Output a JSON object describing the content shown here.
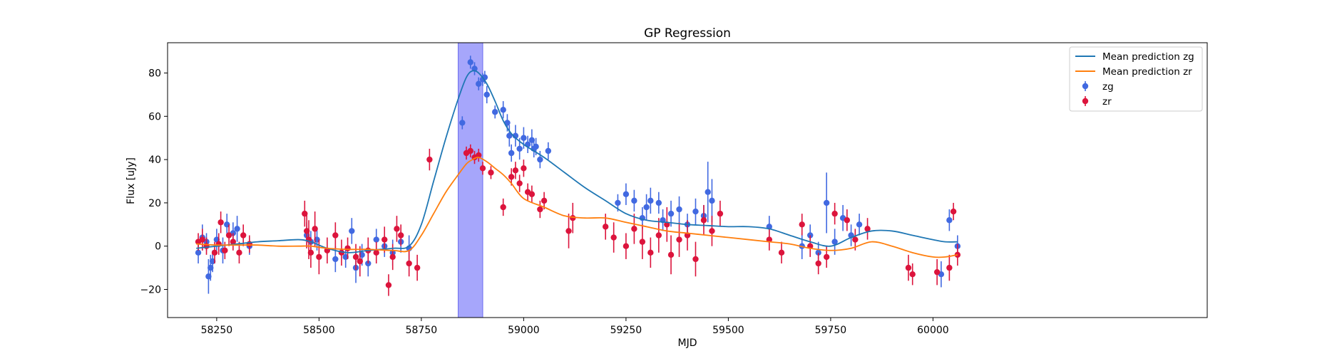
{
  "chart_data": {
    "type": "scatter",
    "title": "GP Regression",
    "xlabel": "MJD",
    "ylabel": "Flux [uJy]",
    "xlim": [
      58130,
      60670
    ],
    "ylim": [
      -33,
      94
    ],
    "xticks": [
      58250,
      58500,
      58750,
      59000,
      59250,
      59500,
      59750,
      60000
    ],
    "yticks": [
      -20,
      0,
      20,
      40,
      60,
      80
    ],
    "grid": false,
    "legend_position": "top-right",
    "shaded_region": {
      "x_start": 58840,
      "x_end": 58900,
      "color": "#a6a6fb"
    },
    "colors": {
      "zg_line": "#1f77b4",
      "zr_line": "#ff7f0e",
      "zg_points": "#4169e1",
      "zr_points": "#dc143c"
    },
    "lines": [
      {
        "name": "Mean prediction zg",
        "x": [
          58200,
          58250,
          58300,
          58350,
          58400,
          58450,
          58480,
          58520,
          58570,
          58620,
          58680,
          58720,
          58750,
          58780,
          58810,
          58840,
          58860,
          58875,
          58890,
          58910,
          58930,
          58950,
          58970,
          59000,
          59050,
          59100,
          59150,
          59200,
          59250,
          59300,
          59350,
          59400,
          59450,
          59500,
          59550,
          59600,
          59650,
          59700,
          59750,
          59800,
          59850,
          59900,
          59950,
          60000,
          60030,
          60060
        ],
        "y": [
          -1,
          0,
          1,
          2,
          2.5,
          3,
          2,
          -1,
          -3,
          -2,
          -1,
          0,
          10,
          30,
          50,
          68,
          78,
          81,
          80,
          75,
          67,
          58,
          52,
          47,
          41,
          34,
          27,
          21,
          15,
          12,
          11,
          10,
          9.5,
          9,
          9,
          8,
          5,
          2,
          0,
          4,
          7,
          7,
          5,
          3,
          2,
          2
        ]
      },
      {
        "name": "Mean prediction zr",
        "x": [
          58200,
          58250,
          58300,
          58350,
          58400,
          58450,
          58480,
          58520,
          58570,
          58620,
          58680,
          58720,
          58750,
          58780,
          58810,
          58840,
          58860,
          58875,
          58890,
          58910,
          58930,
          58950,
          58970,
          59000,
          59050,
          59100,
          59150,
          59200,
          59250,
          59300,
          59350,
          59400,
          59450,
          59500,
          59550,
          59600,
          59650,
          59700,
          59750,
          59800,
          59850,
          59900,
          59950,
          60000,
          60030,
          60060
        ],
        "y": [
          1,
          0.5,
          0.5,
          0.5,
          0,
          0,
          0,
          -1,
          -1.5,
          -1.5,
          -2,
          -2,
          5,
          15,
          25,
          33,
          38,
          40,
          41,
          39,
          36,
          33,
          29,
          22,
          18,
          14,
          13,
          13,
          11,
          9,
          7,
          6,
          5,
          4,
          3,
          2,
          1,
          -1,
          -2,
          -1,
          2,
          0,
          -3,
          -5,
          -5,
          -4
        ]
      }
    ],
    "series": [
      {
        "name": "zg",
        "x": [
          58205,
          58215,
          58225,
          58230,
          58235,
          58240,
          58250,
          58265,
          58275,
          58290,
          58300,
          58330,
          58470,
          58480,
          58495,
          58540,
          58565,
          58580,
          58590,
          58605,
          58620,
          58640,
          58660,
          58680,
          58700,
          58720,
          58850,
          58870,
          58880,
          58890,
          58900,
          58905,
          58910,
          58930,
          58950,
          58960,
          58965,
          58970,
          58980,
          58990,
          59000,
          59010,
          59020,
          59025,
          59030,
          59040,
          59060,
          59230,
          59250,
          59270,
          59290,
          59300,
          59310,
          59330,
          59340,
          59360,
          59380,
          59400,
          59420,
          59440,
          59450,
          59460,
          59600,
          59680,
          59700,
          59720,
          59740,
          59760,
          59780,
          59800,
          59820,
          60020,
          60040,
          60060
        ],
        "y": [
          -3,
          4,
          2,
          -14,
          -10,
          -7,
          3,
          -2,
          10,
          6,
          8,
          0,
          5,
          2,
          3,
          -6,
          -5,
          7,
          -10,
          -4,
          -8,
          3,
          0,
          -3,
          2,
          -1,
          57,
          85,
          82,
          75,
          77,
          78,
          70,
          62,
          63,
          57,
          51,
          43,
          51,
          45,
          50,
          47,
          49,
          45,
          46,
          40,
          44,
          20,
          24,
          21,
          13,
          18,
          21,
          20,
          12,
          15,
          17,
          10,
          16,
          14,
          25,
          21,
          9,
          0,
          5,
          -3,
          20,
          2,
          13,
          5,
          10,
          -13,
          12,
          0
        ],
        "error": [
          5,
          6,
          4,
          8,
          6,
          5,
          5,
          6,
          5,
          5,
          6,
          4,
          6,
          5,
          5,
          6,
          5,
          6,
          7,
          5,
          6,
          5,
          5,
          6,
          5,
          6,
          3,
          3,
          3,
          3,
          3,
          3,
          4,
          3,
          4,
          4,
          5,
          4,
          5,
          5,
          5,
          4,
          5,
          4,
          4,
          4,
          4,
          4,
          5,
          5,
          5,
          6,
          6,
          5,
          5,
          6,
          6,
          5,
          6,
          5,
          14,
          10,
          5,
          6,
          5,
          5,
          14,
          6,
          6,
          5,
          5,
          6,
          5,
          5
        ]
      },
      {
        "name": "zr",
        "x": [
          58205,
          58215,
          58225,
          58245,
          58255,
          58260,
          58270,
          58280,
          58290,
          58305,
          58315,
          58330,
          58465,
          58470,
          58475,
          58480,
          58490,
          58500,
          58520,
          58540,
          58555,
          58570,
          58590,
          58600,
          58620,
          58640,
          58660,
          58670,
          58680,
          58690,
          58700,
          58720,
          58740,
          58770,
          58860,
          58870,
          58880,
          58890,
          58900,
          58920,
          58950,
          58970,
          58980,
          58990,
          59000,
          59010,
          59020,
          59040,
          59050,
          59110,
          59120,
          59200,
          59220,
          59250,
          59270,
          59290,
          59310,
          59330,
          59350,
          59360,
          59380,
          59400,
          59420,
          59440,
          59460,
          59480,
          59600,
          59630,
          59680,
          59700,
          59720,
          59740,
          59760,
          59790,
          59810,
          59840,
          59940,
          59950,
          60010,
          60040,
          60050,
          60060
        ],
        "y": [
          2,
          3,
          0,
          -3,
          1,
          11,
          -2,
          5,
          2,
          -3,
          5,
          1,
          15,
          7,
          3,
          -3,
          8,
          -5,
          -2,
          5,
          -3,
          -1,
          -5,
          -7,
          -2,
          -3,
          3,
          -18,
          -5,
          8,
          5,
          -8,
          -10,
          40,
          43,
          44,
          41,
          42,
          36,
          34,
          18,
          32,
          35,
          29,
          36,
          25,
          24,
          17,
          21,
          7,
          13,
          9,
          4,
          0,
          8,
          2,
          -3,
          5,
          10,
          -4,
          3,
          5,
          -6,
          12,
          7,
          15,
          3,
          -3,
          10,
          0,
          -8,
          -5,
          15,
          12,
          3,
          8,
          -10,
          -13,
          -12,
          -10,
          16,
          -4
        ],
        "error": [
          4,
          5,
          4,
          5,
          5,
          5,
          4,
          5,
          4,
          5,
          5,
          4,
          6,
          8,
          9,
          7,
          8,
          8,
          6,
          6,
          6,
          5,
          6,
          7,
          6,
          5,
          6,
          5,
          6,
          6,
          5,
          6,
          6,
          5,
          3,
          3,
          3,
          3,
          3,
          3,
          4,
          4,
          4,
          4,
          4,
          4,
          4,
          4,
          4,
          8,
          7,
          6,
          7,
          6,
          7,
          8,
          7,
          8,
          8,
          9,
          8,
          7,
          8,
          7,
          7,
          6,
          5,
          5,
          5,
          5,
          5,
          5,
          5,
          5,
          5,
          5,
          6,
          5,
          6,
          6,
          4,
          5
        ]
      }
    ],
    "legend": [
      {
        "label": "Mean prediction zg",
        "kind": "line",
        "color": "#1f77b4"
      },
      {
        "label": "Mean prediction zr",
        "kind": "line",
        "color": "#ff7f0e"
      },
      {
        "label": "zg",
        "kind": "errorbar",
        "color": "#4169e1"
      },
      {
        "label": "zr",
        "kind": "errorbar",
        "color": "#dc143c"
      }
    ]
  }
}
